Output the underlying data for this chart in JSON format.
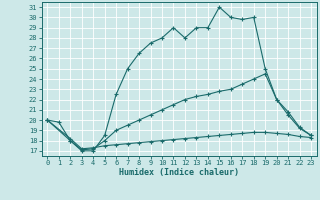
{
  "xlabel": "Humidex (Indice chaleur)",
  "bg_color": "#cde8e8",
  "line_color": "#1a6b6b",
  "grid_color": "#b8d8d8",
  "xlim": [
    -0.5,
    23.5
  ],
  "ylim": [
    16.5,
    31.5
  ],
  "xticks": [
    0,
    1,
    2,
    3,
    4,
    5,
    6,
    7,
    8,
    9,
    10,
    11,
    12,
    13,
    14,
    15,
    16,
    17,
    18,
    19,
    20,
    21,
    22,
    23
  ],
  "yticks": [
    17,
    18,
    19,
    20,
    21,
    22,
    23,
    24,
    25,
    26,
    27,
    28,
    29,
    30,
    31
  ],
  "line1_x": [
    0,
    1,
    2,
    3,
    4,
    5,
    6,
    7,
    8,
    9,
    10,
    11,
    12,
    13,
    14,
    15,
    16,
    17,
    18,
    19,
    20,
    21,
    22,
    23
  ],
  "line1_y": [
    20,
    19.8,
    18,
    17,
    17,
    18.5,
    22.5,
    25,
    26.5,
    27.5,
    28,
    29,
    28,
    29,
    29,
    31,
    30,
    29.8,
    30,
    25,
    22,
    20.5,
    19.2,
    18.5
  ],
  "line2_x": [
    0,
    2,
    3,
    4,
    5,
    6,
    7,
    8,
    9,
    10,
    11,
    12,
    13,
    14,
    15,
    16,
    17,
    18,
    19,
    20,
    21,
    22,
    23
  ],
  "line2_y": [
    20,
    18,
    17.1,
    17.2,
    18,
    19,
    19.5,
    20,
    20.5,
    21,
    21.5,
    22,
    22.3,
    22.5,
    22.8,
    23,
    23.5,
    24,
    24.5,
    22,
    20.8,
    19.3,
    18.5
  ],
  "line3_x": [
    0,
    2,
    3,
    4,
    5,
    6,
    7,
    8,
    9,
    10,
    11,
    12,
    13,
    14,
    15,
    16,
    17,
    18,
    19,
    20,
    21,
    22,
    23
  ],
  "line3_y": [
    20,
    18.2,
    17.2,
    17.3,
    17.5,
    17.6,
    17.7,
    17.8,
    17.9,
    18.0,
    18.1,
    18.2,
    18.3,
    18.4,
    18.5,
    18.6,
    18.7,
    18.8,
    18.8,
    18.7,
    18.6,
    18.4,
    18.3
  ]
}
